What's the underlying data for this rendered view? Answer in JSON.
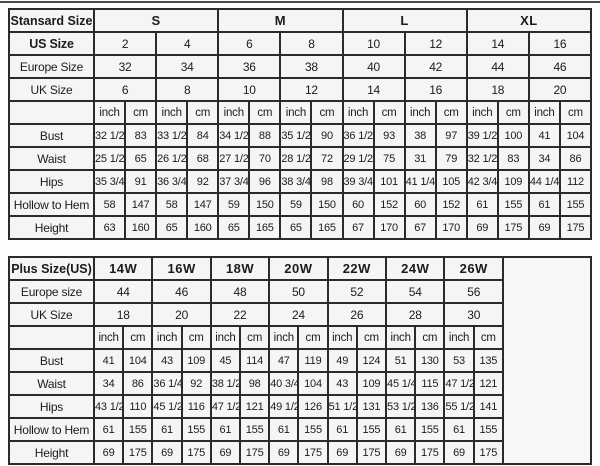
{
  "colors": {
    "page_bg": "#fdfdfd",
    "border": "#2b2b2b",
    "cell_bg": "#f5f5f5",
    "text": "#1b1b1b",
    "top_line": "#4a4a4a"
  },
  "chart_data": [
    {
      "type": "table",
      "title": "Stansard Size",
      "size_groups": [
        "S",
        "M",
        "L",
        "XL"
      ],
      "header_rows": [
        {
          "label": "US Size",
          "label_bold": true,
          "values": [
            "2",
            "4",
            "6",
            "8",
            "10",
            "12",
            "14",
            "16"
          ]
        },
        {
          "label": "Europe Size",
          "label_bold": false,
          "values": [
            "32",
            "34",
            "36",
            "38",
            "40",
            "42",
            "44",
            "46"
          ]
        },
        {
          "label": "UK Size",
          "label_bold": false,
          "values": [
            "6",
            "8",
            "10",
            "12",
            "14",
            "16",
            "18",
            "20"
          ]
        }
      ],
      "unit_labels": [
        "inch",
        "cm"
      ],
      "measure_rows": [
        {
          "label": "Bust",
          "values": [
            "32 1/2",
            "83",
            "33 1/2",
            "84",
            "34 1/2",
            "88",
            "35 1/2",
            "90",
            "36 1/2",
            "93",
            "38",
            "97",
            "39 1/2",
            "100",
            "41",
            "104"
          ]
        },
        {
          "label": "Waist",
          "values": [
            "25 1/2",
            "65",
            "26 1/2",
            "68",
            "27 1/2",
            "70",
            "28 1/2",
            "72",
            "29 1/2",
            "75",
            "31",
            "79",
            "32 1/2",
            "83",
            "34",
            "86"
          ]
        },
        {
          "label": "Hips",
          "values": [
            "35 3/4",
            "91",
            "36 3/4",
            "92",
            "37 3/4",
            "96",
            "38 3/4",
            "98",
            "39 3/4",
            "101",
            "41 1/4",
            "105",
            "42 3/4",
            "109",
            "44 1/4",
            "112"
          ]
        },
        {
          "label": "Hollow to Hem",
          "values": [
            "58",
            "147",
            "58",
            "147",
            "59",
            "150",
            "59",
            "150",
            "60",
            "152",
            "60",
            "152",
            "61",
            "155",
            "61",
            "155"
          ]
        },
        {
          "label": "Height",
          "values": [
            "63",
            "160",
            "65",
            "160",
            "65",
            "165",
            "65",
            "165",
            "67",
            "170",
            "67",
            "170",
            "69",
            "175",
            "69",
            "175"
          ]
        }
      ],
      "trailing_empty_column": false
    },
    {
      "type": "table",
      "title": "Plus Size(US)",
      "size_groups": [
        "14W",
        "16W",
        "18W",
        "20W",
        "22W",
        "24W",
        "26W"
      ],
      "header_rows": [
        {
          "label": "Europe size",
          "label_bold": false,
          "values": [
            "44",
            "46",
            "48",
            "50",
            "52",
            "54",
            "56"
          ]
        },
        {
          "label": "UK Size",
          "label_bold": false,
          "values": [
            "18",
            "20",
            "22",
            "24",
            "26",
            "28",
            "30"
          ]
        }
      ],
      "unit_labels": [
        "inch",
        "cm"
      ],
      "measure_rows": [
        {
          "label": "Bust",
          "values": [
            "41",
            "104",
            "43",
            "109",
            "45",
            "114",
            "47",
            "119",
            "49",
            "124",
            "51",
            "130",
            "53",
            "135"
          ]
        },
        {
          "label": "Waist",
          "values": [
            "34",
            "86",
            "36 1/4",
            "92",
            "38 1/2",
            "98",
            "40 3/4",
            "104",
            "43",
            "109",
            "45 1/4",
            "115",
            "47 1/2",
            "121"
          ]
        },
        {
          "label": "Hips",
          "values": [
            "43 1/2",
            "110",
            "45 1/2",
            "116",
            "47 1/2",
            "121",
            "49 1/2",
            "126",
            "51 1/2",
            "131",
            "53 1/2",
            "136",
            "55 1/2",
            "141"
          ]
        },
        {
          "label": "Hollow to Hem",
          "values": [
            "61",
            "155",
            "61",
            "155",
            "61",
            "155",
            "61",
            "155",
            "61",
            "155",
            "61",
            "155",
            "61",
            "155"
          ]
        },
        {
          "label": "Height",
          "values": [
            "69",
            "175",
            "69",
            "175",
            "69",
            "175",
            "69",
            "175",
            "69",
            "175",
            "69",
            "175",
            "69",
            "175"
          ]
        }
      ],
      "trailing_empty_column": true
    }
  ]
}
